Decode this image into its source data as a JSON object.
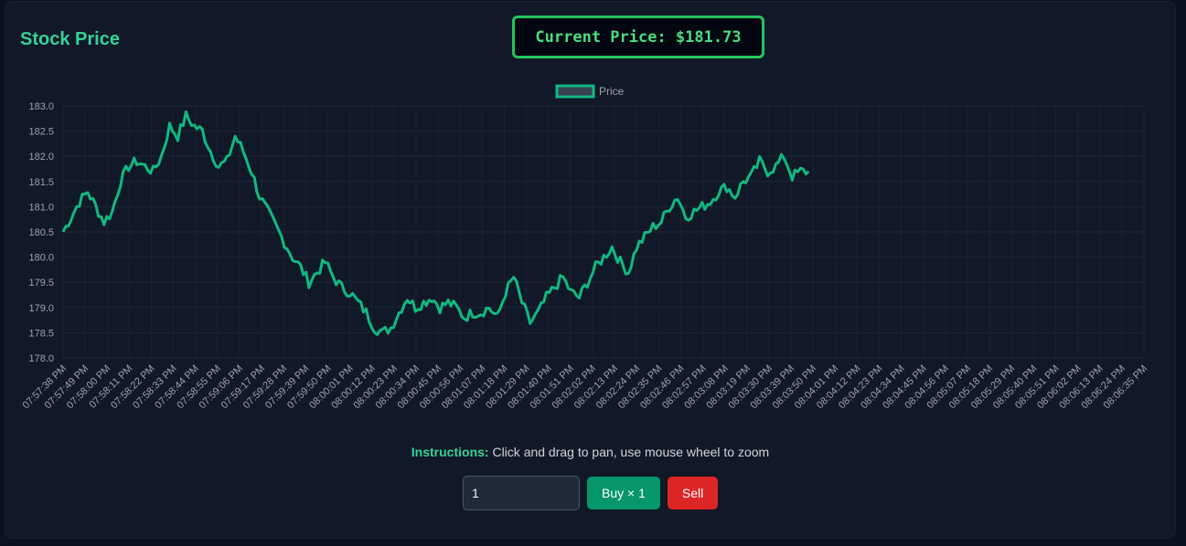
{
  "header": {
    "title": "Stock Price"
  },
  "price_display": {
    "text": "Current Price: $181.73"
  },
  "instructions": {
    "label": "Instructions:",
    "text": " Click and drag to pan, use mouse wheel to zoom"
  },
  "controls": {
    "quantity_value": "1",
    "buy_label": "Buy × 1",
    "sell_label": "Sell"
  },
  "colors": {
    "line": "#10b981",
    "accent": "#34d399",
    "buy": "#059669",
    "sell": "#dc2626"
  },
  "chart_data": {
    "type": "line",
    "legend": {
      "label": "Price",
      "placement": "top-center"
    },
    "ylim": [
      178.0,
      183.0
    ],
    "yticks": [
      "183.0",
      "182.5",
      "182.0",
      "181.5",
      "181.0",
      "180.5",
      "180.0",
      "179.5",
      "179.0",
      "178.5",
      "178.0"
    ],
    "xticks": [
      "07:57:38 PM",
      "07:57:49 PM",
      "07:58:00 PM",
      "07:58:11 PM",
      "07:58:22 PM",
      "07:58:33 PM",
      "07:58:44 PM",
      "07:58:55 PM",
      "07:59:06 PM",
      "07:59:17 PM",
      "07:59:28 PM",
      "07:59:39 PM",
      "07:59:50 PM",
      "08:00:01 PM",
      "08:00:12 PM",
      "08:00:23 PM",
      "08:00:34 PM",
      "08:00:45 PM",
      "08:00:56 PM",
      "08:01:07 PM",
      "08:01:18 PM",
      "08:01:29 PM",
      "08:01:40 PM",
      "08:01:51 PM",
      "08:02:02 PM",
      "08:02:13 PM",
      "08:02:24 PM",
      "08:02:35 PM",
      "08:02:46 PM",
      "08:02:57 PM",
      "08:03:08 PM",
      "08:03:19 PM",
      "08:03:30 PM",
      "08:03:39 PM",
      "08:03:50 PM",
      "08:04:01 PM",
      "08:04:12 PM",
      "08:04:23 PM",
      "08:04:34 PM",
      "08:04:45 PM",
      "08:04:56 PM",
      "08:05:07 PM",
      "08:05:18 PM",
      "08:05:29 PM",
      "08:05:40 PM",
      "08:05:51 PM",
      "08:06:02 PM",
      "08:06:13 PM",
      "08:06:24 PM",
      "08:06:35 PM"
    ],
    "series": [
      {
        "name": "Price",
        "x_start_index": 0,
        "x_end_index": 33.8,
        "values": [
          180.5,
          180.8,
          181.1,
          181.3,
          181.0,
          180.7,
          180.9,
          181.5,
          181.8,
          181.9,
          181.8,
          181.7,
          182.0,
          182.6,
          182.4,
          182.8,
          182.6,
          182.5,
          182.1,
          181.8,
          181.9,
          182.4,
          182.1,
          181.7,
          181.2,
          180.9,
          180.6,
          180.3,
          180.0,
          179.8,
          179.5,
          179.7,
          179.9,
          179.6,
          179.4,
          179.3,
          179.1,
          178.9,
          178.6,
          178.5,
          178.6,
          178.9,
          179.2,
          179.0,
          179.1,
          179.2,
          179.0,
          179.1,
          179.0,
          178.8,
          178.9,
          178.9,
          179.0,
          178.8,
          179.3,
          179.6,
          179.1,
          178.7,
          178.9,
          179.2,
          179.4,
          179.6,
          179.3,
          179.2,
          179.5,
          179.8,
          180.0,
          180.2,
          179.9,
          179.7,
          180.2,
          180.4,
          180.6,
          180.7,
          181.0,
          181.2,
          180.8,
          180.9,
          181.0,
          181.1,
          181.3,
          181.4,
          181.2,
          181.5,
          181.6,
          181.9,
          181.7,
          181.8,
          182.0,
          181.6,
          181.7,
          181.7
        ]
      }
    ]
  }
}
